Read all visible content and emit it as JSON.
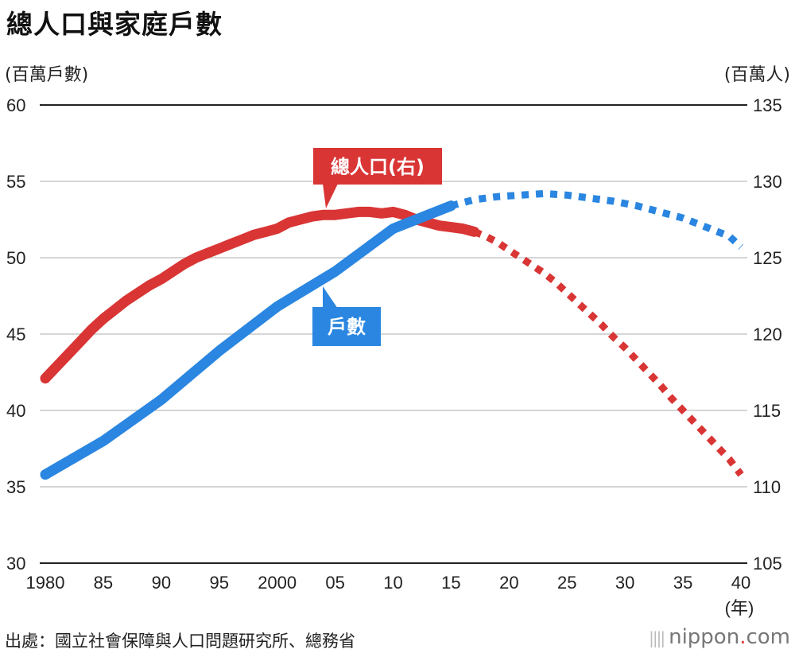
{
  "title": "總人口與家庭戶數",
  "axis_units": {
    "left": "(百萬戶數)",
    "right": "(百萬人)",
    "x": "(年)"
  },
  "source": "出處：國立社會保障與人口問題研究所、總務省",
  "brand": {
    "name": "nippon",
    "dot": ".",
    "tld": "com",
    "bars": "||||"
  },
  "colors": {
    "population": "#d93535",
    "households": "#2a86e0",
    "grid": "#c8c8c8",
    "axis": "#222222"
  },
  "chart_data": {
    "type": "line",
    "title": "總人口與家庭戶數",
    "x_ticks": [
      {
        "value": 1980,
        "label": "1980"
      },
      {
        "value": 1985,
        "label": "85"
      },
      {
        "value": 1990,
        "label": "90"
      },
      {
        "value": 1995,
        "label": "95"
      },
      {
        "value": 2000,
        "label": "2000"
      },
      {
        "value": 2005,
        "label": "05"
      },
      {
        "value": 2010,
        "label": "10"
      },
      {
        "value": 2015,
        "label": "15"
      },
      {
        "value": 2020,
        "label": "20"
      },
      {
        "value": 2025,
        "label": "25"
      },
      {
        "value": 2030,
        "label": "30"
      },
      {
        "value": 2035,
        "label": "35"
      },
      {
        "value": 2040,
        "label": "40"
      }
    ],
    "xlim": [
      1980,
      2040
    ],
    "y_left": {
      "label": "(百萬戶數)",
      "ylim": [
        30,
        60
      ],
      "ticks": [
        "30",
        "35",
        "40",
        "45",
        "50",
        "55",
        "60"
      ]
    },
    "y_right": {
      "label": "(百萬人)",
      "ylim": [
        105,
        135
      ],
      "ticks": [
        "105",
        "110",
        "115",
        "120",
        "125",
        "130",
        "135"
      ]
    },
    "series": [
      {
        "name": "總人口(右)",
        "axis": "right",
        "callout": "總人口(右)",
        "actual": [
          [
            1980,
            117.1
          ],
          [
            1981,
            117.9
          ],
          [
            1982,
            118.7
          ],
          [
            1983,
            119.5
          ],
          [
            1984,
            120.3
          ],
          [
            1985,
            121.0
          ],
          [
            1986,
            121.6
          ],
          [
            1987,
            122.2
          ],
          [
            1988,
            122.7
          ],
          [
            1989,
            123.2
          ],
          [
            1990,
            123.6
          ],
          [
            1991,
            124.1
          ],
          [
            1992,
            124.6
          ],
          [
            1993,
            125.0
          ],
          [
            1994,
            125.3
          ],
          [
            1995,
            125.6
          ],
          [
            1996,
            125.9
          ],
          [
            1997,
            126.2
          ],
          [
            1998,
            126.5
          ],
          [
            1999,
            126.7
          ],
          [
            2000,
            126.9
          ],
          [
            2001,
            127.3
          ],
          [
            2002,
            127.5
          ],
          [
            2003,
            127.7
          ],
          [
            2004,
            127.8
          ],
          [
            2005,
            127.8
          ],
          [
            2006,
            127.9
          ],
          [
            2007,
            128.0
          ],
          [
            2008,
            128.0
          ],
          [
            2009,
            127.9
          ],
          [
            2010,
            128.0
          ],
          [
            2011,
            127.8
          ],
          [
            2012,
            127.5
          ],
          [
            2013,
            127.3
          ],
          [
            2014,
            127.1
          ],
          [
            2015,
            127.0
          ],
          [
            2016,
            126.9
          ],
          [
            2017,
            126.7
          ]
        ],
        "projected": [
          [
            2017,
            126.7
          ],
          [
            2018,
            126.4
          ],
          [
            2019,
            126.0
          ],
          [
            2020,
            125.5
          ],
          [
            2021,
            125.0
          ],
          [
            2022,
            124.5
          ],
          [
            2023,
            124.0
          ],
          [
            2024,
            123.4
          ],
          [
            2025,
            122.7
          ],
          [
            2026,
            122.0
          ],
          [
            2027,
            121.3
          ],
          [
            2028,
            120.6
          ],
          [
            2029,
            119.8
          ],
          [
            2030,
            119.1
          ],
          [
            2031,
            118.3
          ],
          [
            2032,
            117.5
          ],
          [
            2033,
            116.7
          ],
          [
            2034,
            115.8
          ],
          [
            2035,
            115.0
          ],
          [
            2036,
            114.2
          ],
          [
            2037,
            113.4
          ],
          [
            2038,
            112.6
          ],
          [
            2039,
            111.8
          ],
          [
            2040,
            110.8
          ]
        ]
      },
      {
        "name": "戶數",
        "axis": "left",
        "callout": "戶數",
        "actual": [
          [
            1980,
            35.8
          ],
          [
            1985,
            38.0
          ],
          [
            1990,
            40.7
          ],
          [
            1995,
            43.9
          ],
          [
            2000,
            46.8
          ],
          [
            2005,
            49.1
          ],
          [
            2010,
            51.9
          ],
          [
            2015,
            53.4
          ]
        ],
        "projected": [
          [
            2015,
            53.4
          ],
          [
            2017,
            53.8
          ],
          [
            2019,
            54.0
          ],
          [
            2021,
            54.1
          ],
          [
            2023,
            54.2
          ],
          [
            2025,
            54.1
          ],
          [
            2027,
            53.9
          ],
          [
            2029,
            53.7
          ],
          [
            2031,
            53.4
          ],
          [
            2033,
            53.0
          ],
          [
            2035,
            52.6
          ],
          [
            2037,
            52.0
          ],
          [
            2039,
            51.4
          ],
          [
            2040,
            50.7
          ]
        ]
      }
    ]
  }
}
